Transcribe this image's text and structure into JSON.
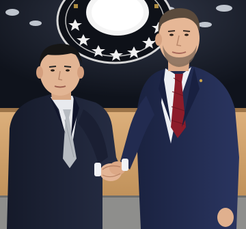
{
  "scene": {
    "subject_count": 2,
    "action": "handshake",
    "colors": {
      "wall_dark": "#141a24",
      "wood_panel": "#d4a46c",
      "floor": "#8e8e8c",
      "suit_left": "#1c2236",
      "suit_right": "#20294a",
      "tie_left": "#b7bcc2",
      "tie_right": "#8c1c2a",
      "emblem_gold": "#c9a24a",
      "emblem_white": "#f2f2f2",
      "skin": "#e2b594",
      "hair_left": "#161616",
      "hair_right": "#5a4a3c"
    }
  }
}
